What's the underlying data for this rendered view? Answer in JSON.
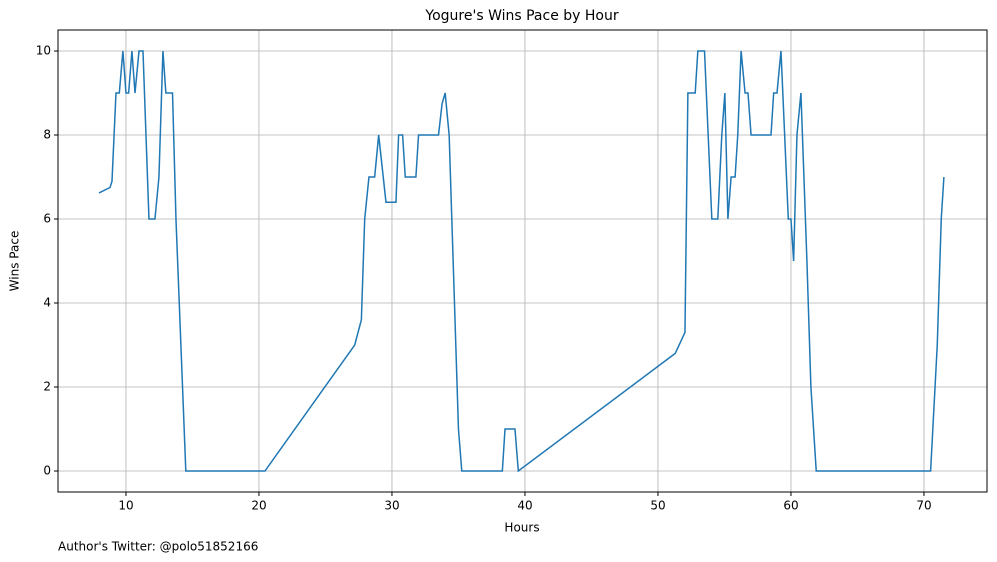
{
  "chart_data": {
    "type": "line",
    "title": "Yogure's Wins Pace by Hour",
    "xlabel": "Hours",
    "ylabel": "Wins Pace",
    "annotation": "Author's Twitter: @polo51852166",
    "x": [
      7.97,
      8.8,
      8.95,
      9.25,
      9.5,
      9.77,
      10,
      10.2,
      10.45,
      10.68,
      10.98,
      11.28,
      11.73,
      12.18,
      12.48,
      12.78,
      13,
      13.5,
      13.76,
      14.5,
      20.45,
      27.2,
      27.7,
      27.95,
      28.27,
      28.7,
      29,
      29.55,
      30.3,
      30.5,
      30.8,
      31,
      31.8,
      32,
      33.5,
      33.77,
      34,
      34.3,
      34.5,
      34.8,
      35,
      35.25,
      38.3,
      38.5,
      39.25,
      39.5,
      51.3,
      52.03,
      52.25,
      52.8,
      53,
      53.5,
      54.05,
      54.5,
      54.8,
      55.03,
      55.26,
      55.5,
      55.8,
      56,
      56.25,
      56.55,
      56.77,
      57,
      58.5,
      58.7,
      58.95,
      59.25,
      59.8,
      60,
      60.2,
      60.45,
      60.75,
      61.2,
      61.5,
      61.9,
      70.5,
      71,
      71.3,
      71.5
    ],
    "series": [
      {
        "name": "Wins Pace",
        "color": "#1f77b4",
        "values": [
          6.62,
          6.75,
          6.9,
          9,
          9,
          10,
          9,
          9,
          10,
          9,
          10,
          10,
          6,
          6,
          7,
          10,
          9,
          9,
          6,
          0,
          0,
          3,
          3.6,
          6,
          7,
          7,
          8,
          6.4,
          6.4,
          8,
          8,
          7,
          7,
          8,
          8,
          8.75,
          9,
          8,
          6,
          3,
          1,
          0,
          0,
          1,
          1,
          0,
          2.8,
          3.3,
          9,
          9,
          10,
          10,
          6,
          6,
          8,
          9,
          6,
          7,
          7,
          8,
          10,
          9,
          9,
          8,
          8,
          9,
          9,
          10,
          6,
          6,
          5,
          8,
          9,
          5,
          2,
          0,
          0,
          3,
          6,
          7
        ]
      }
    ],
    "xlim": [
      4.89,
      74.74
    ],
    "ylim": [
      -0.5,
      10.5
    ],
    "xticks": [
      10,
      20,
      30,
      40,
      50,
      60,
      70
    ],
    "yticks": [
      0,
      2,
      4,
      6,
      8,
      10
    ],
    "grid": true
  }
}
